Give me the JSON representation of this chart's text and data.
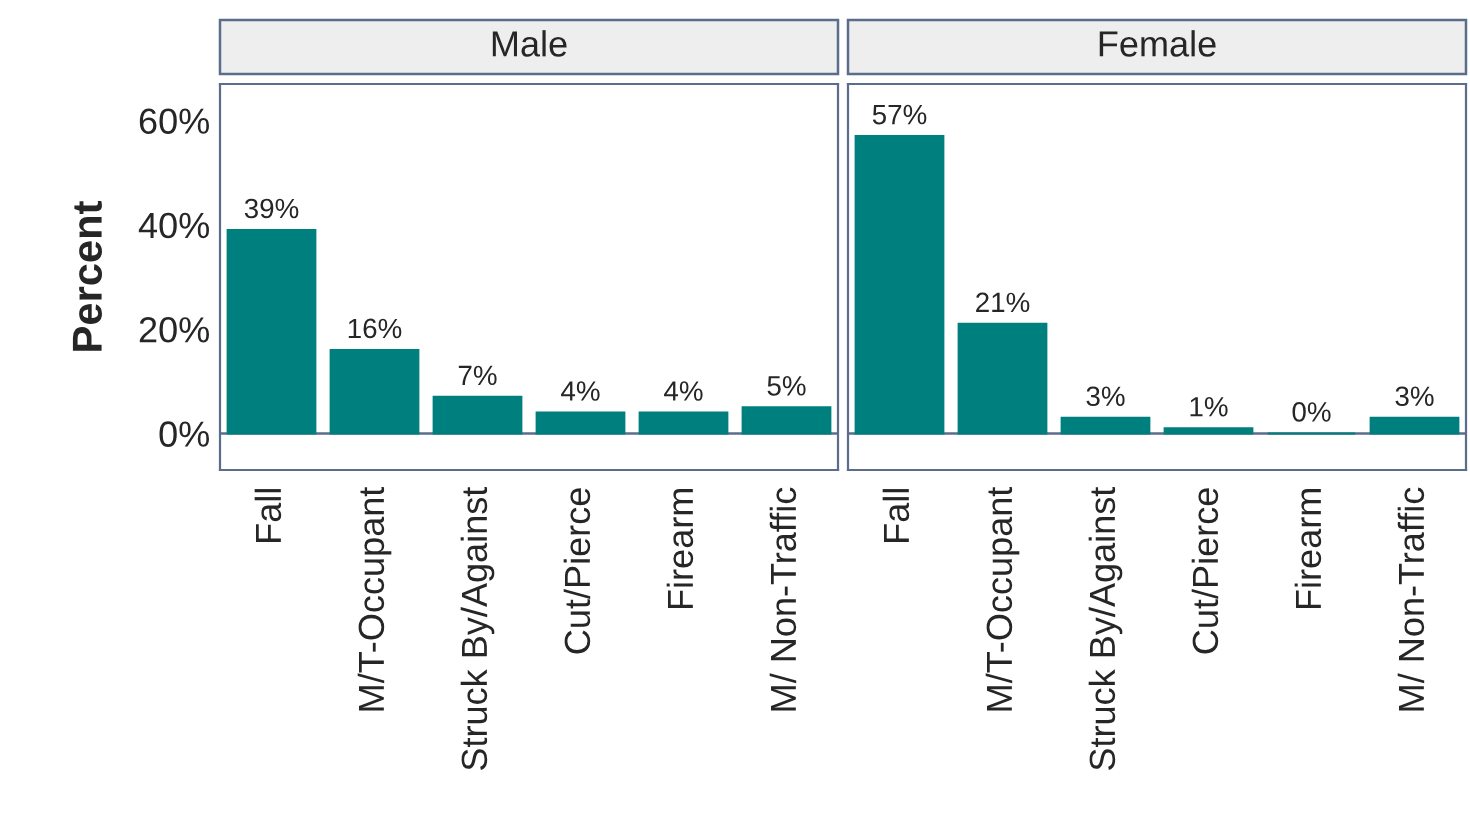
{
  "chart_data": [
    {
      "type": "bar",
      "title": "Male",
      "ylabel": "Percent",
      "categories": [
        "Fall",
        "M/T-Occupant",
        "Struck By/Against",
        "Cut/Pierce",
        "Firearm",
        "M/ Non-Traffic"
      ],
      "values": [
        39,
        16,
        7,
        4,
        4,
        5
      ],
      "value_labels": [
        "39%",
        "16%",
        "7%",
        "4%",
        "4%",
        "5%"
      ],
      "color": "#007f7f",
      "ylim": [
        -7,
        67
      ],
      "yticks": [
        {
          "value": 0,
          "label": "0%"
        },
        {
          "value": 20,
          "label": "20%"
        },
        {
          "value": 40,
          "label": "40%"
        },
        {
          "value": 60,
          "label": "60%"
        }
      ],
      "ref_lines": [
        {
          "axis": "y",
          "value": 0
        }
      ],
      "grid": false,
      "legend": false
    },
    {
      "type": "bar",
      "title": "Female",
      "categories": [
        "Fall",
        "M/T-Occupant",
        "Struck By/Against",
        "Cut/Pierce",
        "Firearm",
        "M/ Non-Traffic"
      ],
      "values": [
        57,
        21,
        3,
        1,
        0,
        3
      ],
      "value_labels": [
        "57%",
        "21%",
        "3%",
        "1%",
        "0%",
        "3%"
      ],
      "color": "#007f7f",
      "ylim": [
        -7,
        67
      ],
      "tick_labels": "x",
      "ref_lines": [
        {
          "axis": "y",
          "value": 0
        }
      ],
      "grid": false,
      "legend": false
    }
  ]
}
